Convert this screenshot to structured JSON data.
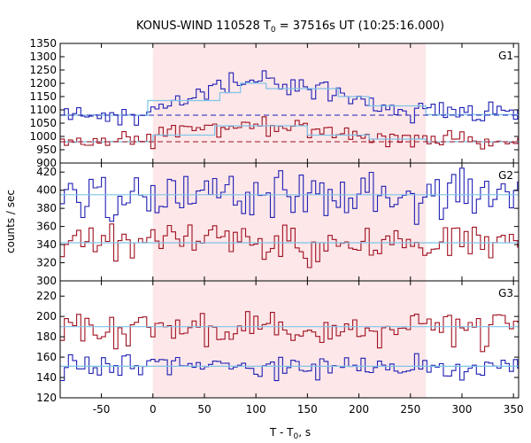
{
  "chart_data": {
    "type": "line",
    "title": {
      "prefix": "KONUS-WIND 110528 T",
      "sub": "0",
      "suffix": " = 37516s UT (10:25:16.000)"
    },
    "xlabel": {
      "prefix": "T - T",
      "sub": "0",
      "suffix": ", s"
    },
    "ylabel": "counts / sec",
    "xlim": [
      -90,
      355
    ],
    "xticks": [
      -50,
      0,
      50,
      100,
      150,
      200,
      250,
      300,
      350
    ],
    "xtick_labels": [
      "-50",
      "0",
      "50",
      "100",
      "150",
      "200",
      "250",
      "300",
      "350"
    ],
    "highlight_interval": [
      0,
      265
    ],
    "colors": {
      "highlight": "#fde7e9",
      "blue": "#1f1fb4",
      "red": "#a01020",
      "fit": "#7fc4e8"
    },
    "panels": [
      {
        "label": "G1",
        "ylim": [
          900,
          1350
        ],
        "yticks": [
          900,
          950,
          1000,
          1050,
          1100,
          1150,
          1200,
          1250,
          1300,
          1350
        ],
        "ytick_labels": [
          "900",
          "950",
          "1000",
          "1050",
          "1100",
          "1150",
          "1200",
          "1250",
          "1300",
          "1350"
        ],
        "series": [
          {
            "key": "blue",
            "bin": 4,
            "level": 1083,
            "profile": [
              [
                -90,
                1083
              ],
              [
                -10,
                1085
              ],
              [
                0,
                1110
              ],
              [
                10,
                1135
              ],
              [
                40,
                1150
              ],
              [
                75,
                1190
              ],
              [
                100,
                1200
              ],
              [
                140,
                1185
              ],
              [
                175,
                1160
              ],
              [
                205,
                1120
              ],
              [
                250,
                1095
              ],
              [
                300,
                1085
              ],
              [
                355,
                1082
              ]
            ],
            "jitter": 20,
            "background": 1080,
            "fit": [
              [
                -90,
                1080
              ],
              [
                -5,
                1080
              ],
              [
                -5,
                1135
              ],
              [
                65,
                1135
              ],
              [
                65,
                1165
              ],
              [
                85,
                1165
              ],
              [
                85,
                1200
              ],
              [
                110,
                1200
              ],
              [
                110,
                1180
              ],
              [
                180,
                1180
              ],
              [
                180,
                1150
              ],
              [
                210,
                1150
              ],
              [
                210,
                1115
              ],
              [
                265,
                1115
              ],
              [
                265,
                1082
              ],
              [
                355,
                1082
              ]
            ]
          },
          {
            "key": "red",
            "bin": 4,
            "level": 980,
            "profile": [
              [
                -90,
                982
              ],
              [
                0,
                982
              ],
              [
                10,
                1010
              ],
              [
                60,
                1030
              ],
              [
                100,
                1045
              ],
              [
                140,
                1040
              ],
              [
                175,
                1015
              ],
              [
                210,
                995
              ],
              [
                260,
                990
              ],
              [
                300,
                982
              ],
              [
                355,
                978
              ]
            ],
            "jitter": 16,
            "background": 980,
            "fit": [
              [
                -90,
                980
              ],
              [
                0,
                980
              ],
              [
                0,
                1005
              ],
              [
                60,
                1005
              ],
              [
                60,
                1040
              ],
              [
                150,
                1040
              ],
              [
                150,
                1005
              ],
              [
                210,
                1005
              ],
              [
                210,
                990
              ],
              [
                265,
                990
              ],
              [
                265,
                980
              ],
              [
                355,
                980
              ]
            ]
          }
        ]
      },
      {
        "label": "G2",
        "ylim": [
          300,
          430
        ],
        "yticks": [
          300,
          320,
          340,
          360,
          380,
          400,
          420
        ],
        "ytick_labels": [
          "300",
          "320",
          "340",
          "360",
          "380",
          "400",
          "420"
        ],
        "series": [
          {
            "key": "blue",
            "bin": 4,
            "level": 395,
            "profile": [
              [
                -90,
                396
              ],
              [
                355,
                394
              ]
            ],
            "jitter": 13,
            "fit": [
              [
                -90,
                395
              ],
              [
                355,
                395
              ]
            ]
          },
          {
            "key": "red",
            "bin": 4,
            "level": 342,
            "profile": [
              [
                -90,
                342
              ],
              [
                355,
                342
              ]
            ],
            "jitter": 11,
            "fit": [
              [
                -90,
                342
              ],
              [
                355,
                342
              ]
            ]
          }
        ]
      },
      {
        "label": "G3",
        "ylim": [
          120,
          235
        ],
        "yticks": [
          120,
          140,
          160,
          180,
          200,
          220
        ],
        "ytick_labels": [
          "120",
          "140",
          "160",
          "180",
          "200",
          "220"
        ],
        "series": [
          {
            "key": "red",
            "bin": 4,
            "level": 190,
            "profile": [
              [
                -90,
                190
              ],
              [
                355,
                190
              ]
            ],
            "jitter": 9,
            "fit": [
              [
                -90,
                190
              ],
              [
                355,
                190
              ]
            ]
          },
          {
            "key": "blue",
            "bin": 4,
            "level": 151,
            "profile": [
              [
                -90,
                151
              ],
              [
                355,
                151
              ]
            ],
            "jitter": 6,
            "fit": [
              [
                -90,
                151
              ],
              [
                355,
                151
              ]
            ]
          }
        ]
      }
    ]
  }
}
